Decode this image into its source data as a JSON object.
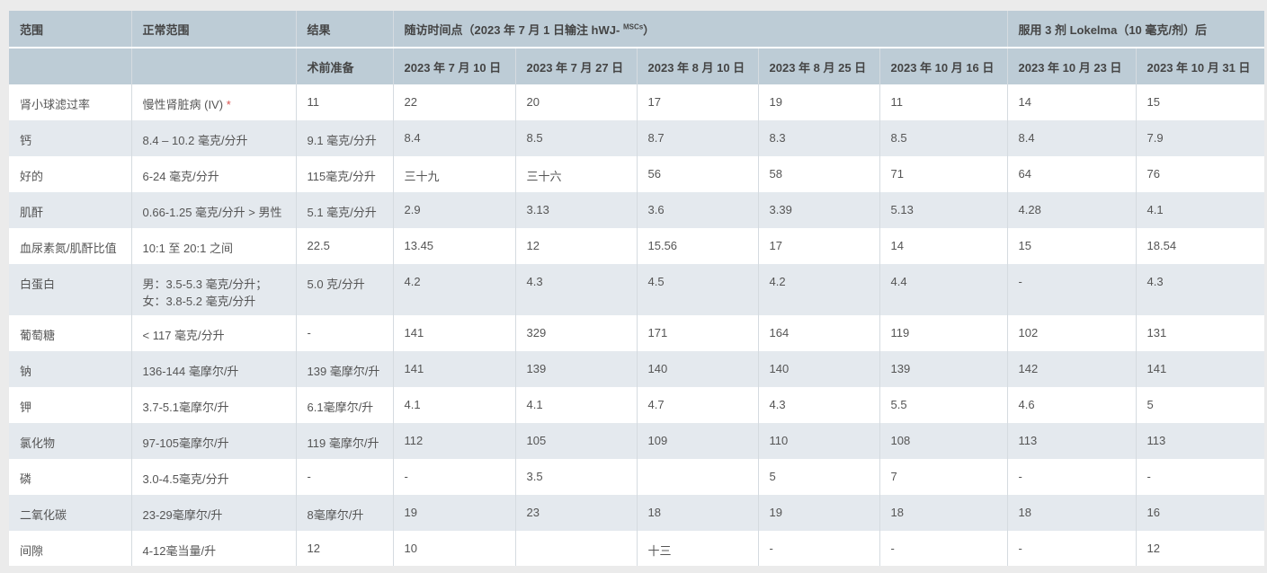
{
  "header": {
    "row1": {
      "range": "范围",
      "normal_range": "正常范围",
      "result": "结果",
      "followup_prefix": "随访时间点（2023 年 7 月 1 日输注 hWJ- ",
      "followup_sup": "MSCs",
      "followup_suffix": "）",
      "after": "服用 3 剂 Lokelma（10 毫克/剂）后"
    },
    "row2": [
      "术前准备",
      "2023 年 7 月 10 日",
      "2023 年 7 月 27 日",
      "2023 年 8 月 10 日",
      "2023 年 8 月 25 日",
      "2023 年 10 月 16 日",
      "2023 年 10 月 23 日",
      "2023 年 10 月 31 日"
    ]
  },
  "rows": [
    {
      "name": "肾小球滤过率",
      "normal": "慢性肾脏病 (IV)",
      "star": "*",
      "values": [
        "11",
        "22",
        "20",
        "17",
        "19",
        "11",
        "14",
        "15"
      ]
    },
    {
      "name": "钙",
      "normal": "8.4 – 10.2 毫克/分升",
      "values": [
        "9.1 毫克/分升",
        "8.4",
        "8.5",
        "8.7",
        "8.3",
        "8.5",
        "8.4",
        "7.9"
      ]
    },
    {
      "name": "好的",
      "normal": "6-24 毫克/分升",
      "values": [
        "115毫克/分升",
        "三十九",
        "三十六",
        "56",
        "58",
        "71",
        "64",
        "76"
      ]
    },
    {
      "name": "肌酐",
      "normal": "0.66-1.25 毫克/分升 > 男性",
      "values": [
        "5.1 毫克/分升",
        "2.9",
        "3.13",
        "3.6",
        "3.39",
        "5.13",
        "4.28",
        "4.1"
      ]
    },
    {
      "name": "血尿素氮/肌酐比值",
      "normal": "10:1 至 20:1 之间",
      "values": [
        "22.5",
        "13.45",
        "12",
        "15.56",
        "17",
        "14",
        "15",
        "18.54"
      ]
    },
    {
      "name": "白蛋白",
      "normal": "男：3.5-5.3 毫克/分升；",
      "normal2": "女：3.8-5.2 毫克/分升",
      "values": [
        "5.0 克/分升",
        "4.2",
        "4.3",
        "4.5",
        "4.2",
        "4.4",
        "-",
        "4.3"
      ]
    },
    {
      "name": "葡萄糖",
      "normal": "< 117 毫克/分升",
      "values": [
        "-",
        "141",
        "329",
        "171",
        "164",
        "119",
        "102",
        "131"
      ]
    },
    {
      "name": "钠",
      "normal": "136-144 毫摩尔/升",
      "values": [
        "139 毫摩尔/升",
        "141",
        "139",
        "140",
        "140",
        "139",
        "142",
        "141"
      ]
    },
    {
      "name": "钾",
      "normal": "3.7-5.1毫摩尔/升",
      "values": [
        "6.1毫摩尔/升",
        "4.1",
        "4.1",
        "4.7",
        "4.3",
        "5.5",
        "4.6",
        "5"
      ]
    },
    {
      "name": "氯化物",
      "normal": "97-105毫摩尔/升",
      "values": [
        "119 毫摩尔/升",
        "112",
        "105",
        "109",
        "110",
        "108",
        "113",
        "113"
      ]
    },
    {
      "name": "磷",
      "normal": "3.0-4.5毫克/分升",
      "values": [
        "-",
        "-",
        "3.5",
        "",
        "5",
        "7",
        "-",
        "-"
      ]
    },
    {
      "name": "二氧化碳",
      "normal": "23-29毫摩尔/升",
      "values": [
        "8毫摩尔/升",
        "19",
        "23",
        "18",
        "19",
        "18",
        "18",
        "16"
      ]
    },
    {
      "name": "间隙",
      "normal": "4-12毫当量/升",
      "values": [
        "12",
        "10",
        "",
        "十三",
        "-",
        "-",
        "-",
        "12"
      ]
    }
  ]
}
